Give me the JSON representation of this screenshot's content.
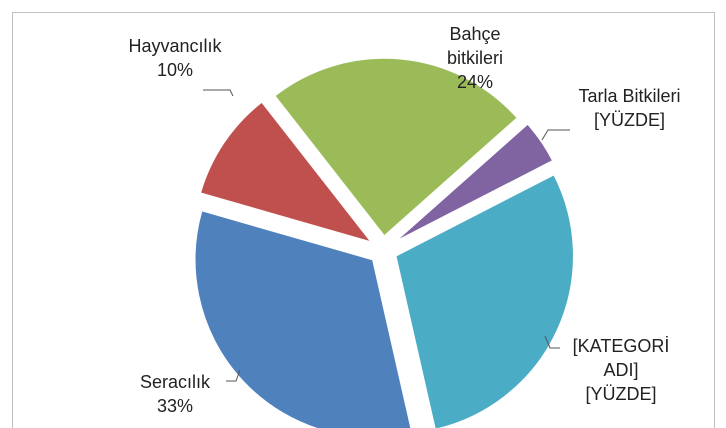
{
  "chart_data": {
    "type": "pie",
    "categories": [
      "Bahçe bitkileri",
      "Tarla Bitkileri",
      "[KATEGORİ ADI]",
      "Seracılık",
      "Hayvancılık"
    ],
    "values": [
      24,
      4,
      29,
      33,
      10
    ],
    "value_labels": [
      "24%",
      "[YÜZDE]",
      "[YÜZDE]",
      "33%",
      "10%"
    ],
    "colors": [
      "#9bbb59",
      "#8064a2",
      "#4bacc6",
      "#4f81bd",
      "#c0504d"
    ]
  }
}
